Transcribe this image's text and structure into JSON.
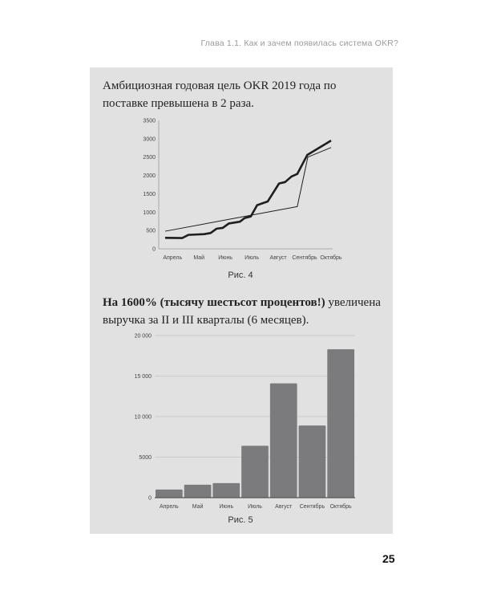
{
  "header": {
    "running_title": "Глава 1.1. Как и зачем появилась система OKR?"
  },
  "text1": "Амбициозная годовая цель OKR 2019 года по поставке превышена в 2 раза.",
  "figure4_caption": "Рис. 4",
  "text2": {
    "bold": "На 1600% (тысячу шестьсот процентов!)",
    "regular": " увеличена выручка за II и III кварталы (6 месяцев)."
  },
  "figure5_caption": "Рис. 5",
  "page_number": "25",
  "colors": {
    "panel": "#e1e1e2",
    "bar": "#7b7b7d",
    "line": "#1e1e1e"
  },
  "chart_data": [
    {
      "type": "line",
      "categories": [
        "Апрель",
        "Май",
        "Июнь",
        "Июль",
        "Август",
        "Сентябрь",
        "Октябрь"
      ],
      "ylim": [
        0,
        3500
      ],
      "yticks": [
        "0",
        "500",
        "1000",
        "1500",
        "2000",
        "2500",
        "3000",
        "3500"
      ],
      "grid": false,
      "series": [
        {
          "style": "thick",
          "points": [
            [
              -0.28,
              300
            ],
            [
              0.37,
              295
            ],
            [
              0.6,
              380
            ],
            [
              1.2,
              400
            ],
            [
              1.44,
              430
            ],
            [
              1.67,
              550
            ],
            [
              1.9,
              570
            ],
            [
              2.13,
              690
            ],
            [
              2.55,
              740
            ],
            [
              2.73,
              840
            ],
            [
              2.96,
              880
            ],
            [
              3.2,
              1190
            ],
            [
              3.6,
              1290
            ],
            [
              4.03,
              1780
            ],
            [
              4.26,
              1820
            ],
            [
              4.5,
              1970
            ],
            [
              4.72,
              2040
            ],
            [
              5.1,
              2560
            ],
            [
              6.0,
              2950
            ]
          ]
        },
        {
          "style": "thin",
          "points": [
            [
              -0.28,
              480
            ],
            [
              4.72,
              1150
            ],
            [
              5.12,
              2500
            ],
            [
              6.0,
              2760
            ]
          ]
        }
      ]
    },
    {
      "type": "bar",
      "categories": [
        "Апрель",
        "Май",
        "Июнь",
        "Июль",
        "Август",
        "Сентябрь",
        "Октябрь"
      ],
      "values": [
        1000,
        1600,
        1800,
        6400,
        14100,
        8900,
        18300
      ],
      "ylim": [
        0,
        20000
      ],
      "yticks": [
        "0",
        "5000",
        "10 000",
        "15 000",
        "20 000"
      ],
      "ytick_values": [
        0,
        5000,
        10000,
        15000,
        20000
      ],
      "grid": true
    }
  ]
}
